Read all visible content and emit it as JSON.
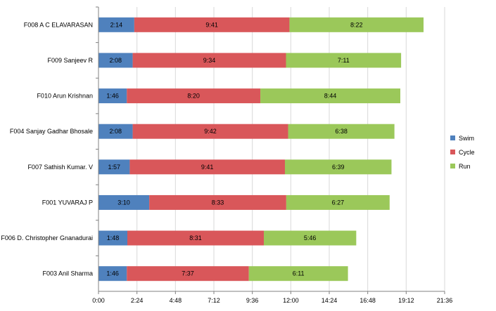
{
  "colors": {
    "swim": "#4f81bd",
    "cycle": "#d9575a",
    "run": "#9bc85a",
    "grid": "#d9d9d9",
    "axis": "#808080"
  },
  "chart_data": {
    "type": "bar",
    "orientation": "horizontal",
    "stacked": true,
    "title": "",
    "xlabel": "",
    "ylabel": "",
    "xlim_minutes": [
      0,
      21.6
    ],
    "xtick_step_minutes": 2.4,
    "x_ticks": [
      "0:00",
      "2:24",
      "4:48",
      "7:12",
      "9:36",
      "12:00",
      "14:24",
      "16:48",
      "19:12",
      "21:36"
    ],
    "grid": "vertical",
    "legend_position": "right",
    "categories": [
      "F008 A C ELAVARASAN",
      "F009 Sanjeev R",
      "F010 Arun Krishnan",
      "F004 Sanjay Gadhar Bhosale",
      "F007 Sathish Kumar. V",
      "F001 YUVARAJ P",
      "F006 D. Christopher Gnanadurai",
      "F003 Anil Sharma"
    ],
    "series": [
      {
        "name": "Swim",
        "color_key": "swim",
        "values": [
          "2:14",
          "2:08",
          "1:46",
          "2:08",
          "1:57",
          "3:10",
          "1:48",
          "1:46"
        ]
      },
      {
        "name": "Cycle",
        "color_key": "cycle",
        "values": [
          "9:41",
          "9:34",
          "8:20",
          "9:42",
          "9:41",
          "8:33",
          "8:31",
          "7:37"
        ]
      },
      {
        "name": "Run",
        "color_key": "run",
        "values": [
          "8:22",
          "7:11",
          "8:44",
          "6:38",
          "6:39",
          "6:27",
          "5:46",
          "6:11"
        ]
      }
    ]
  }
}
